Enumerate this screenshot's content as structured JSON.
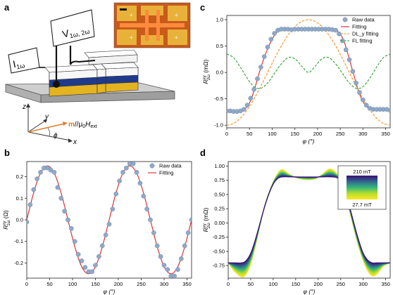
{
  "panels": {
    "a": {
      "letter": "a",
      "voltage_label": "V",
      "voltage_sub": "1ω, 2ω",
      "current_label": "I",
      "current_sub": "1ω",
      "axis_z": "z",
      "axis_y": "y",
      "axis_x": "x",
      "m_label": "m",
      "m_tail": "//μ",
      "m_sub0": "0",
      "m_H": "H",
      "m_ext": "ext",
      "phi": "ϕ",
      "colors": {
        "substrate": "#bdbdbd",
        "white": "#f7f7f7",
        "blue": "#1f3a8a",
        "yellow": "#e3b320",
        "inset_bg": "#c85a1a",
        "inset_pad": "#e8b23a",
        "phi_arc": "#e27d2a"
      }
    },
    "b": {
      "letter": "b"
    },
    "c": {
      "letter": "c"
    },
    "d": {
      "letter": "d"
    }
  },
  "chart_data": [
    {
      "id": "b",
      "type": "scatter",
      "ylabel_main": "R",
      "ylabel_sup": "xy",
      "ylabel_sub": "1ω",
      "ylabel_unit": " (Ω)",
      "xlabel": "φ (°)",
      "xlim": [
        0,
        360
      ],
      "ylim": [
        -0.27,
        0.27
      ],
      "xticks": [
        0,
        50,
        100,
        150,
        200,
        250,
        300,
        350
      ],
      "yticks": [
        -0.2,
        -0.1,
        0.0,
        0.1,
        0.2
      ],
      "ytick_labels": [
        "-0.2",
        "-0.1",
        "0.0",
        "0.1",
        "0.2"
      ],
      "legend": [
        {
          "name": "Raw data",
          "kind": "marker",
          "color": "#8fa9c9"
        },
        {
          "name": "Fitting",
          "kind": "line",
          "color": "#d62728"
        }
      ],
      "series": [
        {
          "name": "Raw data",
          "kind": "scatter",
          "color": "#8fa9c9",
          "x": [
            0,
            7.5,
            15,
            22.5,
            30,
            37.5,
            45,
            52.5,
            60,
            67.5,
            75,
            82.5,
            90,
            97.5,
            105,
            112.5,
            120,
            127.5,
            135,
            142.5,
            150,
            157.5,
            165,
            172.5,
            180,
            187.5,
            195,
            202.5,
            210,
            217.5,
            225,
            232.5,
            240,
            247.5,
            255,
            262.5,
            270,
            277.5,
            285,
            292.5,
            300,
            307.5,
            315,
            322.5,
            330,
            337.5,
            345,
            352.5,
            360
          ],
          "y": [
            -0.01,
            0.07,
            0.14,
            0.19,
            0.22,
            0.24,
            0.24,
            0.23,
            0.22,
            0.15,
            0.1,
            0.04,
            0.0,
            -0.04,
            -0.1,
            -0.16,
            -0.19,
            -0.22,
            -0.24,
            -0.24,
            -0.21,
            -0.17,
            -0.12,
            -0.07,
            -0.02,
            0.05,
            0.12,
            0.18,
            0.22,
            0.24,
            0.26,
            0.26,
            0.22,
            0.17,
            0.11,
            0.05,
            0.0,
            -0.06,
            -0.12,
            -0.17,
            -0.21,
            -0.23,
            -0.26,
            -0.26,
            -0.23,
            -0.18,
            -0.12,
            -0.06,
            0.0
          ]
        },
        {
          "name": "Fitting",
          "kind": "line",
          "color": "#d62728",
          "x": [
            0,
            15,
            30,
            45,
            60,
            75,
            90,
            105,
            120,
            135,
            150,
            165,
            180,
            195,
            210,
            225,
            240,
            255,
            270,
            285,
            300,
            315,
            330,
            345,
            360
          ],
          "y": [
            0.0,
            0.125,
            0.217,
            0.25,
            0.217,
            0.125,
            0.0,
            -0.125,
            -0.217,
            -0.25,
            -0.217,
            -0.125,
            0.0,
            0.125,
            0.217,
            0.25,
            0.217,
            0.125,
            0.0,
            -0.125,
            -0.217,
            -0.25,
            -0.217,
            -0.125,
            0.0
          ]
        }
      ]
    },
    {
      "id": "c",
      "type": "scatter",
      "ylabel_main": "R",
      "ylabel_sup": "xy",
      "ylabel_sub": "2ω",
      "ylabel_unit": " (mΩ)",
      "xlabel": "φ (°)",
      "xlim": [
        0,
        360
      ],
      "ylim": [
        -1.05,
        1.08
      ],
      "xticks": [
        0,
        50,
        100,
        150,
        200,
        250,
        300,
        350
      ],
      "yticks": [
        -1.0,
        -0.5,
        0.0,
        0.5,
        1.0
      ],
      "ytick_labels": [
        "-1.0",
        "-0.5",
        "0.0",
        "0.5",
        "1.0"
      ],
      "legend": [
        {
          "name": "Raw data",
          "kind": "marker",
          "color": "#8fa9c9"
        },
        {
          "name": "Fitting",
          "kind": "line",
          "color": "#d62728"
        },
        {
          "name": "DL_y fitting",
          "kind": "dash",
          "color": "#ff8c1a"
        },
        {
          "name": "FL fitting",
          "kind": "dash",
          "color": "#2ca02c"
        }
      ],
      "series": [
        {
          "name": "Raw data",
          "kind": "scatter",
          "color": "#8fa9c9",
          "x": [
            0,
            7.5,
            15,
            22.5,
            30,
            37.5,
            45,
            52.5,
            60,
            67.5,
            75,
            82.5,
            90,
            97.5,
            105,
            112.5,
            120,
            127.5,
            135,
            142.5,
            150,
            157.5,
            165,
            172.5,
            180,
            187.5,
            195,
            202.5,
            210,
            217.5,
            225,
            232.5,
            240,
            247.5,
            255,
            262.5,
            270,
            277.5,
            285,
            292.5,
            300,
            307.5,
            315,
            322.5,
            330,
            337.5,
            345,
            352.5,
            360
          ],
          "y": [
            -0.73,
            -0.73,
            -0.74,
            -0.74,
            -0.73,
            -0.7,
            -0.62,
            -0.49,
            -0.32,
            -0.12,
            0.1,
            0.3,
            0.48,
            0.63,
            0.74,
            0.8,
            0.82,
            0.82,
            0.82,
            0.81,
            0.82,
            0.82,
            0.82,
            0.82,
            0.82,
            0.82,
            0.82,
            0.82,
            0.82,
            0.82,
            0.82,
            0.81,
            0.8,
            0.73,
            0.6,
            0.43,
            0.24,
            0.02,
            -0.2,
            -0.38,
            -0.52,
            -0.62,
            -0.68,
            -0.7,
            -0.7,
            -0.7,
            -0.7,
            -0.7,
            -0.72
          ]
        },
        {
          "name": "Fitting",
          "kind": "line",
          "color": "#d62728",
          "x": [
            0,
            15,
            30,
            40,
            50,
            60,
            70,
            80,
            90,
            100,
            110,
            120,
            130,
            140,
            150,
            160,
            170,
            180,
            190,
            200,
            210,
            220,
            230,
            240,
            250,
            260,
            270,
            280,
            290,
            300,
            310,
            320,
            330,
            345,
            360
          ],
          "y": [
            -0.73,
            -0.74,
            -0.73,
            -0.69,
            -0.58,
            -0.35,
            -0.05,
            0.22,
            0.45,
            0.63,
            0.76,
            0.82,
            0.82,
            0.82,
            0.82,
            0.82,
            0.82,
            0.82,
            0.82,
            0.82,
            0.82,
            0.82,
            0.81,
            0.8,
            0.73,
            0.55,
            0.25,
            -0.05,
            -0.35,
            -0.55,
            -0.66,
            -0.7,
            -0.7,
            -0.7,
            -0.73
          ]
        },
        {
          "name": "DL_y fitting",
          "kind": "dash",
          "color": "#ff8c1a",
          "x": [
            0,
            15,
            30,
            45,
            60,
            75,
            90,
            105,
            120,
            135,
            150,
            165,
            180,
            195,
            210,
            225,
            240,
            255,
            270,
            285,
            300,
            315,
            330,
            345,
            360
          ],
          "y": [
            -1.0,
            -0.966,
            -0.866,
            -0.707,
            -0.5,
            -0.259,
            0.0,
            0.259,
            0.5,
            0.707,
            0.866,
            0.966,
            1.0,
            0.966,
            0.866,
            0.707,
            0.5,
            0.259,
            0.0,
            -0.259,
            -0.5,
            -0.707,
            -0.866,
            -0.966,
            -1.0
          ]
        },
        {
          "name": "FL fitting",
          "kind": "dash",
          "color": "#2ca02c",
          "x": [
            0,
            15,
            30,
            45,
            60,
            75,
            90,
            105,
            120,
            135,
            150,
            165,
            180,
            195,
            210,
            225,
            240,
            255,
            270,
            285,
            300,
            315,
            330,
            345,
            360
          ],
          "y": [
            0.35,
            0.28,
            0.1,
            -0.11,
            -0.27,
            -0.3,
            -0.2,
            -0.02,
            0.16,
            0.28,
            0.26,
            0.12,
            0.0,
            0.12,
            0.26,
            0.28,
            0.16,
            -0.02,
            -0.2,
            -0.3,
            -0.27,
            -0.11,
            0.1,
            0.28,
            0.35
          ]
        }
      ]
    },
    {
      "id": "d",
      "type": "line",
      "ylabel_main": "R",
      "ylabel_sup": "xy",
      "ylabel_sub": "2ω",
      "ylabel_unit": " (mΩ)",
      "xlabel": "φ (°)",
      "xlim": [
        0,
        360
      ],
      "ylim": [
        -0.97,
        1.08
      ],
      "xticks": [
        0,
        50,
        100,
        150,
        200,
        250,
        300,
        350
      ],
      "yticks": [
        -0.75,
        -0.5,
        -0.25,
        0.0,
        0.25,
        0.5,
        0.75,
        1.0
      ],
      "ytick_labels": [
        "-0.75",
        "-0.50",
        "-0.25",
        "0.00",
        "0.25",
        "0.50",
        "0.75",
        "1.00"
      ],
      "colorbar": {
        "top_label": "210 mT",
        "bottom_label": "27.7 mT",
        "colors": [
          "#3b0f70",
          "#31688e",
          "#35b779",
          "#b5de2b",
          "#fde725"
        ]
      },
      "curves": [
        {
          "field": "210 mT",
          "color": "#3b0f70",
          "x": [
            0,
            15,
            30,
            40,
            50,
            60,
            70,
            80,
            90,
            100,
            110,
            120,
            135,
            150,
            165,
            180,
            195,
            210,
            225,
            240,
            250,
            260,
            270,
            280,
            290,
            300,
            310,
            320,
            330,
            345,
            360
          ],
          "y": [
            -0.7,
            -0.7,
            -0.7,
            -0.66,
            -0.53,
            -0.3,
            -0.02,
            0.26,
            0.5,
            0.68,
            0.78,
            0.81,
            0.81,
            0.81,
            0.81,
            0.81,
            0.81,
            0.81,
            0.81,
            0.8,
            0.74,
            0.56,
            0.28,
            -0.02,
            -0.3,
            -0.53,
            -0.65,
            -0.7,
            -0.7,
            -0.7,
            -0.7
          ]
        },
        {
          "field": "27.7 mT",
          "color": "#fde725",
          "x": [
            0,
            15,
            30,
            40,
            50,
            60,
            70,
            80,
            90,
            100,
            110,
            120,
            135,
            150,
            165,
            180,
            195,
            210,
            225,
            240,
            250,
            260,
            270,
            280,
            290,
            300,
            310,
            320,
            330,
            345,
            360
          ],
          "y": [
            -0.7,
            -0.86,
            -0.95,
            -0.9,
            -0.72,
            -0.42,
            -0.07,
            0.27,
            0.52,
            0.72,
            0.87,
            0.94,
            0.86,
            0.8,
            0.77,
            0.76,
            0.78,
            0.86,
            0.95,
            0.88,
            0.72,
            0.5,
            0.2,
            -0.12,
            -0.42,
            -0.66,
            -0.84,
            -0.93,
            -0.9,
            -0.76,
            -0.7
          ]
        }
      ]
    }
  ]
}
